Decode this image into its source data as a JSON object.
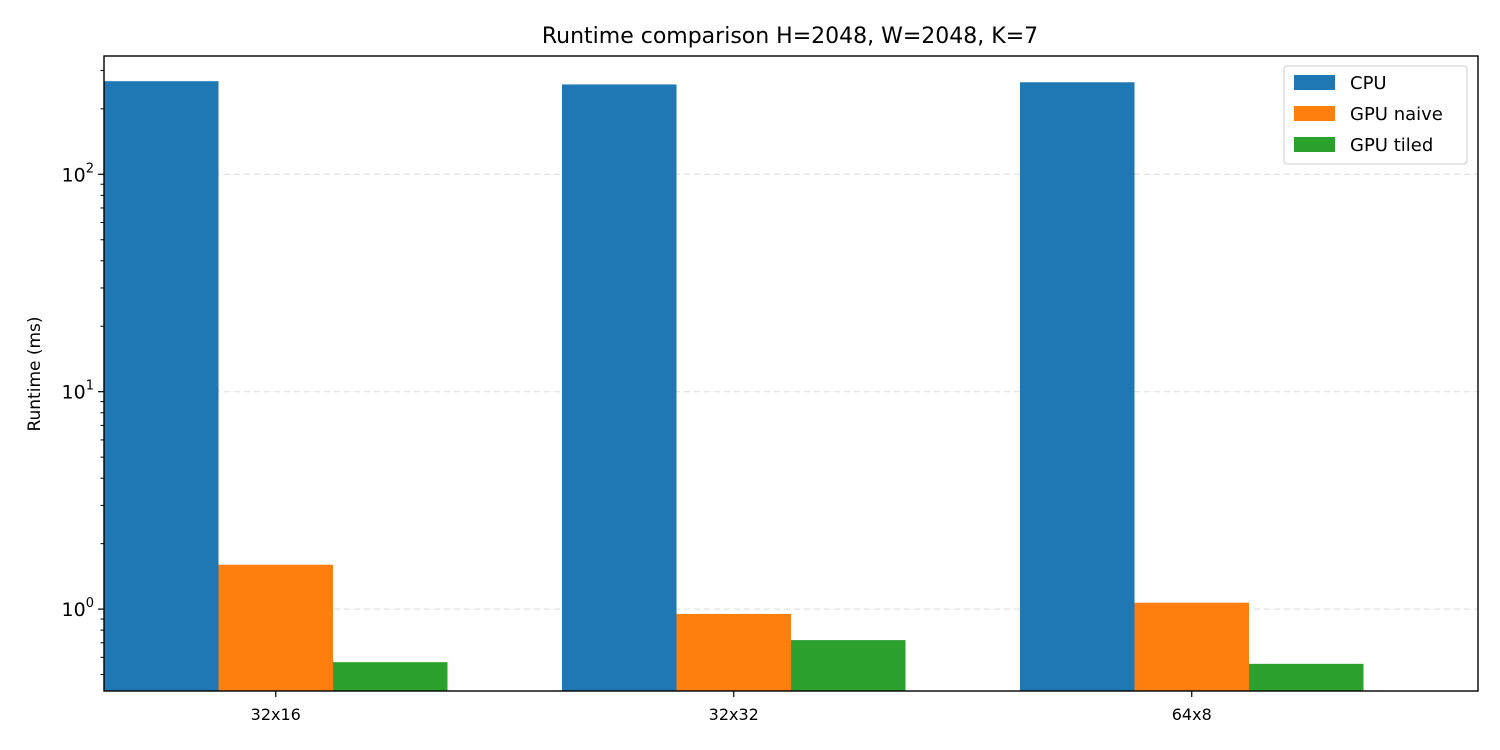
{
  "chart_data": {
    "type": "bar",
    "title": "Runtime comparison H=2048, W=2048, K=7",
    "xlabel": "",
    "ylabel": "Runtime (ms)",
    "yscale": "log",
    "ylim": [
      0.42,
      350
    ],
    "grid": "y-major-dashed",
    "legend_position": "top-right",
    "categories": [
      "32x16",
      "32x32",
      "64x8"
    ],
    "series": [
      {
        "name": "CPU",
        "color": "#1f77b4",
        "values": [
          268,
          259,
          265
        ]
      },
      {
        "name": "GPU naive",
        "color": "#ff7f0e",
        "values": [
          1.6,
          0.95,
          1.07
        ]
      },
      {
        "name": "GPU tiled",
        "color": "#2ca02c",
        "values": [
          0.57,
          0.72,
          0.56
        ]
      }
    ],
    "y_major_ticks": [
      {
        "value": 1,
        "base": "10",
        "exp": "0"
      },
      {
        "value": 10,
        "base": "10",
        "exp": "1"
      },
      {
        "value": 100,
        "base": "10",
        "exp": "2"
      }
    ]
  }
}
